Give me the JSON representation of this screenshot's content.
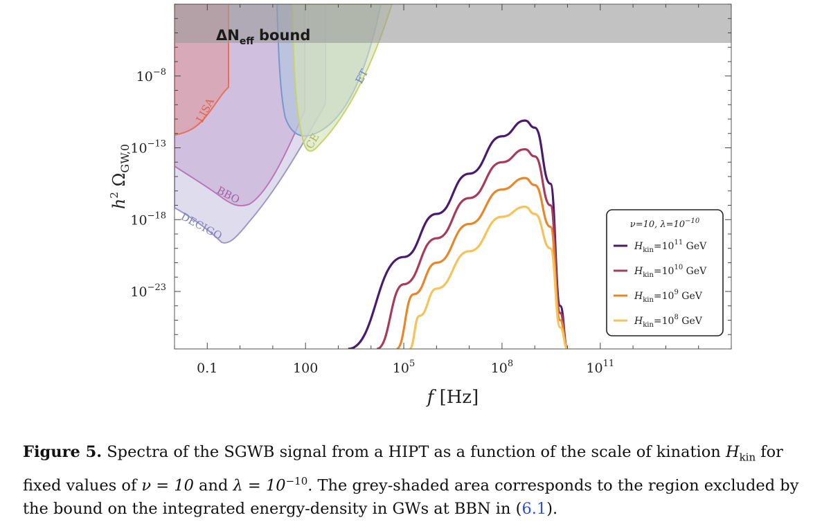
{
  "figure": {
    "caption": {
      "label": "Figure 5.",
      "text_a": " Spectra of the SGWB signal from a HIPT as a function of the scale of kination ",
      "hkin_symbol": "H",
      "hkin_sub": "kin",
      "text_b": " for fixed values of ",
      "nu_eq": "ν = 10",
      "text_c": " and ",
      "lambda_eq": "λ = 10",
      "lambda_exp": "−10",
      "text_d": ". The grey-shaded area corresponds to the region excluded by the bound on the integrated energy-density in GWs at BBN in (",
      "ref": "6.1",
      "text_e": ")."
    },
    "neff_label_main": "ΔN",
    "neff_label_sub": "eff",
    "neff_label_tail": " bound",
    "detectors": [
      "LISA",
      "BBO",
      "DECIGO",
      "ET",
      "CE"
    ],
    "legend": {
      "title": "ν=10,  λ=10",
      "title_exp": "−10",
      "entries": [
        {
          "base": "H",
          "sub": "kin",
          "mid": "=10",
          "exp": "11",
          "unit": " GeV",
          "color": "#4a1a6e"
        },
        {
          "base": "H",
          "sub": "kin",
          "mid": "=10",
          "exp": "10",
          "unit": " GeV",
          "color": "#a83a5a"
        },
        {
          "base": "H",
          "sub": "kin",
          "mid": "=10",
          "exp": "9",
          "unit": " GeV",
          "color": "#e8862a"
        },
        {
          "base": "H",
          "sub": "kin",
          "mid": "=10",
          "exp": "8",
          "unit": " GeV",
          "color": "#f7c25a"
        }
      ]
    },
    "xaxis": {
      "label_var": "f",
      "label_unit": " [Hz]",
      "ticks": [
        {
          "text": "0.1",
          "exp": "",
          "log": -1
        },
        {
          "text": "100",
          "exp": "",
          "log": 2
        },
        {
          "text": "10",
          "exp": "5",
          "log": 5
        },
        {
          "text": "10",
          "exp": "8",
          "log": 8
        },
        {
          "text": "10",
          "exp": "11",
          "log": 11
        }
      ]
    },
    "yaxis": {
      "label_h": "h",
      "label_h_exp": "2",
      "label_omega": " Ω",
      "label_sub": "GW,0",
      "ticks": [
        {
          "text": "10",
          "exp": "−8",
          "log": -8
        },
        {
          "text": "10",
          "exp": "−13",
          "log": -13
        },
        {
          "text": "10",
          "exp": "−18",
          "log": -18
        },
        {
          "text": "10",
          "exp": "−23",
          "log": -23
        }
      ]
    }
  },
  "chart_data": {
    "type": "line",
    "x_scale": "log",
    "y_scale": "log",
    "xlim": [
      0.01,
      1000000000000000.0
    ],
    "ylim": [
      1e-27,
      0.001
    ],
    "grid": false,
    "legend_position": "right",
    "excluded_region": {
      "label": "ΔNeff bound",
      "y_min": 1e-06,
      "color": "#9a9a9a"
    },
    "series": [
      {
        "name": "Hkin=10^11 GeV",
        "color": "#4a1a6e",
        "points": [
          [
            2000.0,
            -27
          ],
          [
            100000.0,
            -20.6
          ],
          [
            1000000.0,
            -17.6
          ],
          [
            10000000.0,
            -14.8
          ],
          [
            100000000.0,
            -12.2
          ],
          [
            500000000.0,
            -11.1
          ],
          [
            1000000000.0,
            -11.6
          ],
          [
            3000000000.0,
            -15.5
          ],
          [
            6000000000.0,
            -24
          ],
          [
            10000000000.0,
            -27
          ]
        ]
      },
      {
        "name": "Hkin=10^10 GeV",
        "color": "#a83a5a",
        "points": [
          [
            15000.0,
            -27
          ],
          [
            100000.0,
            -22.5
          ],
          [
            1000000.0,
            -19.3
          ],
          [
            10000000.0,
            -16.5
          ],
          [
            100000000.0,
            -14
          ],
          [
            500000000.0,
            -13.1
          ],
          [
            1000000000.0,
            -13.6
          ],
          [
            3000000000.0,
            -17
          ],
          [
            6000000000.0,
            -24.5
          ],
          [
            10000000000.0,
            -27
          ]
        ]
      },
      {
        "name": "Hkin=10^9 GeV",
        "color": "#e8862a",
        "points": [
          [
            60000.0,
            -27
          ],
          [
            200000.0,
            -23.2
          ],
          [
            1000000.0,
            -21
          ],
          [
            10000000.0,
            -18.3
          ],
          [
            100000000.0,
            -15.9
          ],
          [
            500000000.0,
            -15.1
          ],
          [
            1000000000.0,
            -15.6
          ],
          [
            3000000000.0,
            -18.5
          ],
          [
            6000000000.0,
            -25
          ],
          [
            10000000000.0,
            -27
          ]
        ]
      },
      {
        "name": "Hkin=10^8 GeV",
        "color": "#f7c25a",
        "points": [
          [
            150000.0,
            -27
          ],
          [
            300000.0,
            -24.7
          ],
          [
            1000000.0,
            -22.8
          ],
          [
            10000000.0,
            -20.2
          ],
          [
            100000000.0,
            -17.8
          ],
          [
            500000000.0,
            -17.1
          ],
          [
            1000000000.0,
            -17.6
          ],
          [
            3000000000.0,
            -20
          ],
          [
            6000000000.0,
            -25.5
          ],
          [
            10000000000.0,
            -27
          ]
        ]
      }
    ],
    "sensitivity_curves": [
      {
        "name": "LISA",
        "color": "#e0604a",
        "fill": "#d9a0aa"
      },
      {
        "name": "BBO",
        "color": "#b070b0",
        "fill": "#c9b0d8"
      },
      {
        "name": "DECIGO",
        "color": "#9090c8",
        "fill": "#d8d8ec"
      },
      {
        "name": "ET",
        "color": "#7090c8",
        "fill": "#b8c8e0"
      },
      {
        "name": "CE",
        "color": "#c0d070",
        "fill": "#d8e6c0"
      }
    ]
  }
}
